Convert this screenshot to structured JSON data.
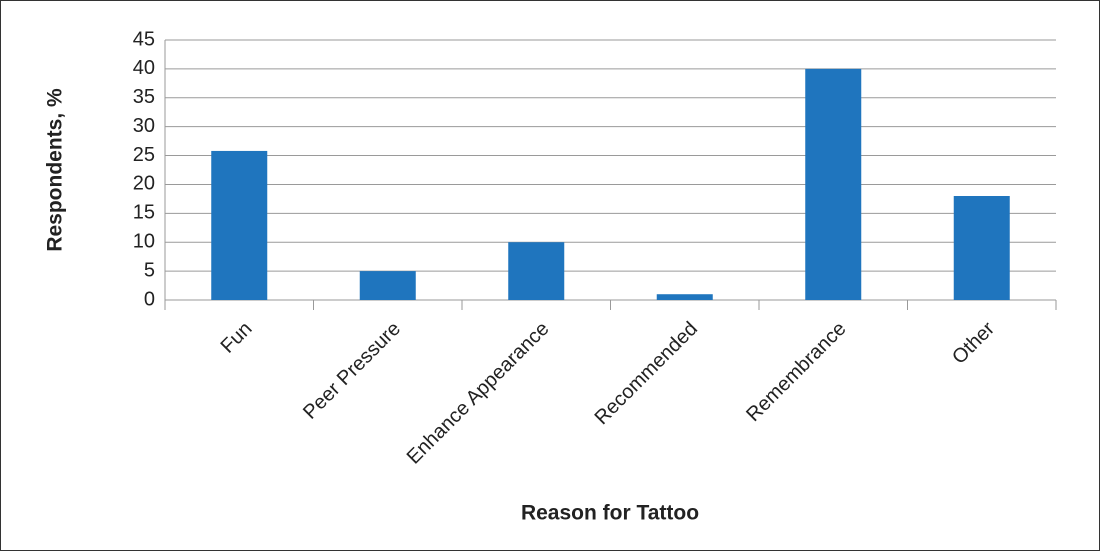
{
  "chart_data": {
    "type": "bar",
    "x_label": "Reason for Tattoo",
    "y_label": "Respondents, %",
    "categories": [
      "Fun",
      "Peer Pressure",
      "Enhance Appearance",
      "Recommended",
      "Remembrance",
      "Other"
    ],
    "values": [
      25.8,
      5,
      10,
      1,
      40,
      18
    ],
    "color": "#1f75be",
    "ylim": [
      0,
      45
    ],
    "yticks": [
      0,
      5,
      10,
      15,
      20,
      25,
      30,
      35,
      40,
      45
    ],
    "grid": true
  }
}
